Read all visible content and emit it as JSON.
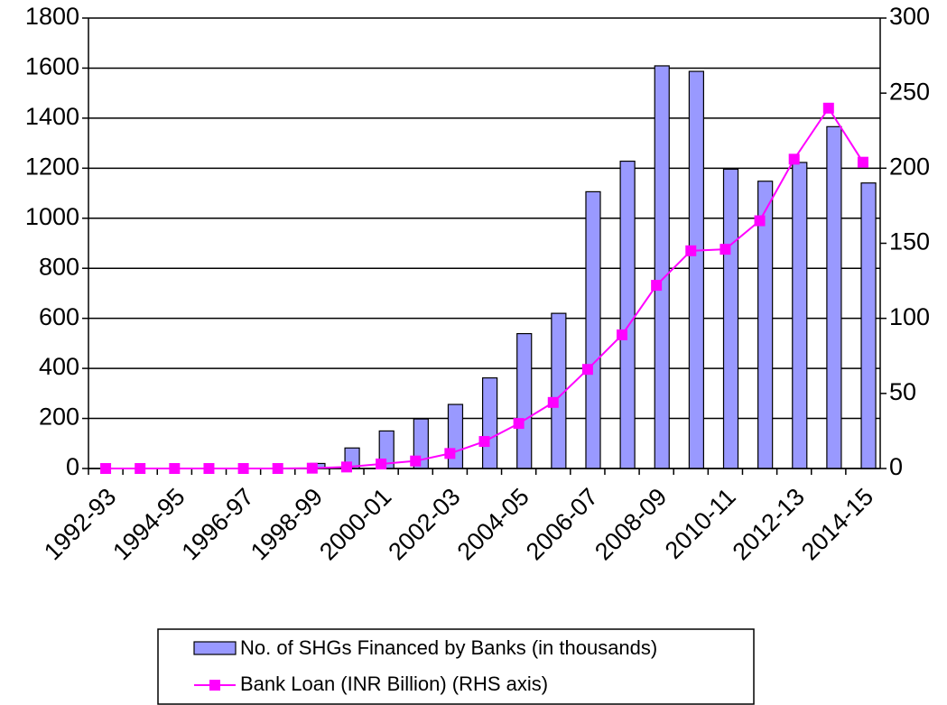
{
  "chart_data": {
    "type": "bar-line",
    "categories": [
      "1992-93",
      null,
      "1994-95",
      null,
      "1996-97",
      null,
      "1998-99",
      null,
      "2000-01",
      null,
      "2002-03",
      null,
      "2004-05",
      null,
      "2006-07",
      null,
      "2008-09",
      null,
      "2010-11",
      null,
      "2012-13",
      null,
      "2014-15"
    ],
    "series": [
      {
        "name": "No. of SHGs Financed by Banks (in thousands)",
        "type": "bar",
        "color": "#9999ff",
        "values": [
          0,
          0,
          0,
          0,
          0,
          0,
          20,
          82,
          150,
          198,
          256,
          362,
          539,
          620,
          1106,
          1228,
          1609,
          1587,
          1196,
          1148,
          1223,
          1366,
          1141
        ]
      },
      {
        "name": "Bank Loan (INR Billion) (RHS axis)",
        "type": "line",
        "axis": "y2",
        "color": "#ff00ff",
        "values": [
          0,
          0,
          0,
          0,
          0,
          0,
          0.2,
          1,
          3,
          5,
          10,
          18,
          30,
          44,
          66,
          89,
          122,
          145,
          146,
          165,
          206,
          240,
          204
        ]
      }
    ],
    "ylim": [
      0,
      1800
    ],
    "yticks": [
      0,
      200,
      400,
      600,
      800,
      1000,
      1200,
      1400,
      1600,
      1800
    ],
    "y2lim": [
      0,
      300
    ],
    "y2ticks": [
      0,
      50,
      100,
      150,
      200,
      250,
      300
    ],
    "grid": true,
    "legend": "bottom"
  }
}
